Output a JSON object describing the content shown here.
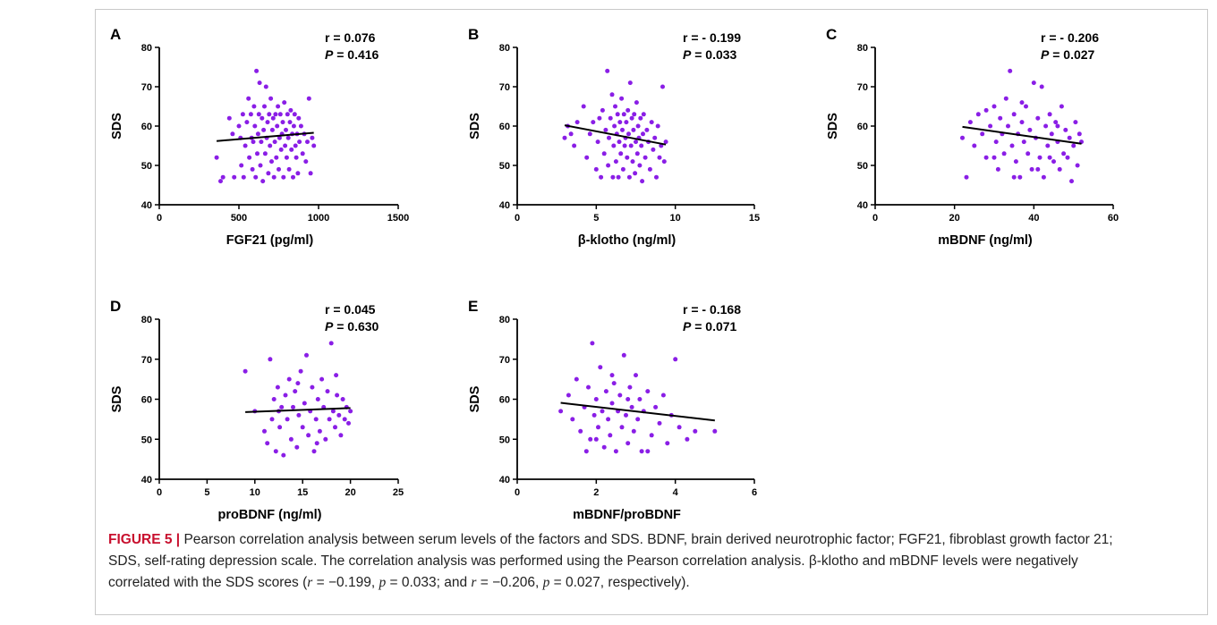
{
  "chart_data": [
    {
      "type": "scatter",
      "panel": "A",
      "xlabel": "FGF21 (pg/ml)",
      "ylabel": "SDS",
      "xlim": [
        0,
        1500
      ],
      "ylim": [
        40,
        80
      ],
      "xticks": [
        0,
        500,
        1000,
        1500
      ],
      "yticks": [
        40,
        50,
        60,
        70,
        80
      ],
      "stat_r": "r = 0.076",
      "stat_p_label": "P",
      "stat_p_value": "= 0.416",
      "fit": {
        "x": [
          360,
          970
        ],
        "y": [
          56.2,
          58.3
        ]
      },
      "points": [
        [
          360,
          52
        ],
        [
          385,
          46
        ],
        [
          400,
          47
        ],
        [
          440,
          62
        ],
        [
          460,
          58
        ],
        [
          470,
          47
        ],
        [
          500,
          60
        ],
        [
          510,
          57
        ],
        [
          515,
          50
        ],
        [
          525,
          63
        ],
        [
          530,
          47
        ],
        [
          540,
          55
        ],
        [
          550,
          61
        ],
        [
          560,
          67
        ],
        [
          565,
          52
        ],
        [
          575,
          63
        ],
        [
          580,
          57
        ],
        [
          585,
          49
        ],
        [
          590,
          56
        ],
        [
          595,
          65
        ],
        [
          600,
          60
        ],
        [
          605,
          47
        ],
        [
          610,
          74
        ],
        [
          615,
          53
        ],
        [
          620,
          58
        ],
        [
          625,
          63
        ],
        [
          630,
          71
        ],
        [
          635,
          50
        ],
        [
          640,
          56
        ],
        [
          645,
          62
        ],
        [
          650,
          46
        ],
        [
          655,
          59
        ],
        [
          660,
          65
        ],
        [
          665,
          53
        ],
        [
          670,
          70
        ],
        [
          675,
          57
        ],
        [
          680,
          61
        ],
        [
          685,
          48
        ],
        [
          690,
          63
        ],
        [
          695,
          55
        ],
        [
          700,
          67
        ],
        [
          705,
          51
        ],
        [
          710,
          59
        ],
        [
          715,
          62
        ],
        [
          720,
          47
        ],
        [
          725,
          56
        ],
        [
          730,
          63
        ],
        [
          735,
          52
        ],
        [
          740,
          60
        ],
        [
          745,
          65
        ],
        [
          750,
          49
        ],
        [
          755,
          57
        ],
        [
          760,
          63
        ],
        [
          765,
          54
        ],
        [
          770,
          58
        ],
        [
          775,
          61
        ],
        [
          780,
          47
        ],
        [
          785,
          66
        ],
        [
          790,
          55
        ],
        [
          795,
          59
        ],
        [
          800,
          52
        ],
        [
          805,
          63
        ],
        [
          810,
          57
        ],
        [
          815,
          49
        ],
        [
          820,
          61
        ],
        [
          825,
          64
        ],
        [
          830,
          54
        ],
        [
          835,
          58
        ],
        [
          840,
          47
        ],
        [
          845,
          60
        ],
        [
          850,
          63
        ],
        [
          855,
          55
        ],
        [
          860,
          52
        ],
        [
          865,
          58
        ],
        [
          870,
          48
        ],
        [
          875,
          62
        ],
        [
          880,
          56
        ],
        [
          890,
          60
        ],
        [
          900,
          53
        ],
        [
          910,
          58
        ],
        [
          920,
          51
        ],
        [
          930,
          56
        ],
        [
          940,
          67
        ],
        [
          950,
          48
        ],
        [
          960,
          57
        ],
        [
          970,
          55
        ]
      ]
    },
    {
      "type": "scatter",
      "panel": "B",
      "xlabel": "β-klotho (ng/ml)",
      "ylabel": "SDS",
      "xlim": [
        0,
        15
      ],
      "ylim": [
        40,
        80
      ],
      "xticks": [
        0,
        5,
        10,
        15
      ],
      "yticks": [
        40,
        50,
        60,
        70,
        80
      ],
      "stat_r": "r = - 0.199",
      "stat_p_label": "P",
      "stat_p_value": "= 0.033",
      "fit": {
        "x": [
          3,
          9.4
        ],
        "y": [
          60.2,
          55.3
        ]
      },
      "points": [
        [
          3,
          57
        ],
        [
          3.2,
          60
        ],
        [
          3.4,
          58
        ],
        [
          3.6,
          55
        ],
        [
          3.8,
          61
        ],
        [
          4.2,
          65
        ],
        [
          4.4,
          52
        ],
        [
          4.6,
          58
        ],
        [
          4.8,
          61
        ],
        [
          5,
          49
        ],
        [
          5.1,
          56
        ],
        [
          5.2,
          62
        ],
        [
          5.3,
          47
        ],
        [
          5.4,
          64
        ],
        [
          5.5,
          53
        ],
        [
          5.6,
          59
        ],
        [
          5.7,
          74
        ],
        [
          5.75,
          50
        ],
        [
          5.8,
          57
        ],
        [
          5.9,
          62
        ],
        [
          6,
          68
        ],
        [
          6.05,
          47
        ],
        [
          6.1,
          55
        ],
        [
          6.15,
          60
        ],
        [
          6.2,
          65
        ],
        [
          6.25,
          51
        ],
        [
          6.3,
          58
        ],
        [
          6.35,
          63
        ],
        [
          6.4,
          47
        ],
        [
          6.45,
          56
        ],
        [
          6.5,
          61
        ],
        [
          6.55,
          53
        ],
        [
          6.6,
          67
        ],
        [
          6.65,
          59
        ],
        [
          6.7,
          49
        ],
        [
          6.75,
          63
        ],
        [
          6.8,
          55
        ],
        [
          6.85,
          57
        ],
        [
          6.9,
          61
        ],
        [
          6.95,
          52
        ],
        [
          7,
          64
        ],
        [
          7.05,
          58
        ],
        [
          7.1,
          47
        ],
        [
          7.15,
          71
        ],
        [
          7.2,
          55
        ],
        [
          7.25,
          62
        ],
        [
          7.3,
          51
        ],
        [
          7.35,
          59
        ],
        [
          7.4,
          63
        ],
        [
          7.45,
          48
        ],
        [
          7.5,
          56
        ],
        [
          7.55,
          66
        ],
        [
          7.6,
          53
        ],
        [
          7.65,
          60
        ],
        [
          7.7,
          57
        ],
        [
          7.75,
          50
        ],
        [
          7.8,
          62
        ],
        [
          7.85,
          55
        ],
        [
          7.9,
          46
        ],
        [
          7.95,
          58
        ],
        [
          8,
          63
        ],
        [
          8.1,
          52
        ],
        [
          8.2,
          59
        ],
        [
          8.3,
          56
        ],
        [
          8.4,
          49
        ],
        [
          8.5,
          61
        ],
        [
          8.6,
          54
        ],
        [
          8.7,
          57
        ],
        [
          8.8,
          47
        ],
        [
          8.9,
          60
        ],
        [
          9,
          52
        ],
        [
          9.1,
          55
        ],
        [
          9.2,
          70
        ],
        [
          9.3,
          51
        ],
        [
          9.4,
          56
        ]
      ]
    },
    {
      "type": "scatter",
      "panel": "C",
      "xlabel": "mBDNF (ng/ml)",
      "ylabel": "SDS",
      "xlim": [
        0,
        60
      ],
      "ylim": [
        40,
        80
      ],
      "xticks": [
        0,
        20,
        40,
        60
      ],
      "yticks": [
        40,
        50,
        60,
        70,
        80
      ],
      "stat_r": "r = - 0.206",
      "stat_p_label": "P",
      "stat_p_value": "= 0.027",
      "fit": {
        "x": [
          22,
          52
        ],
        "y": [
          59.8,
          55.5
        ]
      },
      "points": [
        [
          22,
          57
        ],
        [
          23,
          47
        ],
        [
          24,
          61
        ],
        [
          25,
          55
        ],
        [
          26,
          63
        ],
        [
          27,
          58
        ],
        [
          28,
          52
        ],
        [
          29,
          60
        ],
        [
          30,
          65
        ],
        [
          30.5,
          56
        ],
        [
          31,
          49
        ],
        [
          31.5,
          62
        ],
        [
          32,
          58
        ],
        [
          32.5,
          53
        ],
        [
          33,
          67
        ],
        [
          33.5,
          60
        ],
        [
          34,
          74
        ],
        [
          34.5,
          55
        ],
        [
          35,
          63
        ],
        [
          35.5,
          51
        ],
        [
          36,
          58
        ],
        [
          36.5,
          47
        ],
        [
          37,
          61
        ],
        [
          37.5,
          56
        ],
        [
          38,
          65
        ],
        [
          38.5,
          53
        ],
        [
          39,
          59
        ],
        [
          39.5,
          49
        ],
        [
          40,
          71
        ],
        [
          40.5,
          57
        ],
        [
          41,
          62
        ],
        [
          41.5,
          52
        ],
        [
          42,
          70
        ],
        [
          42.5,
          47
        ],
        [
          43,
          60
        ],
        [
          43.5,
          55
        ],
        [
          44,
          63
        ],
        [
          44.5,
          58
        ],
        [
          45,
          51
        ],
        [
          45.5,
          61
        ],
        [
          46,
          56
        ],
        [
          46.5,
          49
        ],
        [
          47,
          65
        ],
        [
          47.5,
          53
        ],
        [
          48,
          59
        ],
        [
          48.5,
          52
        ],
        [
          49,
          57
        ],
        [
          49.5,
          46
        ],
        [
          50,
          55
        ],
        [
          50.5,
          61
        ],
        [
          51,
          50
        ],
        [
          51.5,
          58
        ],
        [
          52,
          56
        ],
        [
          30,
          52
        ],
        [
          35,
          47
        ],
        [
          28,
          64
        ],
        [
          37,
          66
        ],
        [
          41,
          49
        ],
        [
          44,
          52
        ],
        [
          46,
          60
        ]
      ]
    },
    {
      "type": "scatter",
      "panel": "D",
      "xlabel": "proBDNF (ng/ml)",
      "ylabel": "SDS",
      "xlim": [
        0,
        25
      ],
      "ylim": [
        40,
        80
      ],
      "xticks": [
        0,
        5,
        10,
        15,
        20,
        25
      ],
      "yticks": [
        40,
        50,
        60,
        70,
        80
      ],
      "stat_r": "r = 0.045",
      "stat_p_label": "P",
      "stat_p_value": "= 0.630",
      "fit": {
        "x": [
          9,
          20
        ],
        "y": [
          56.8,
          57.8
        ]
      },
      "points": [
        [
          9,
          67
        ],
        [
          10,
          57
        ],
        [
          11,
          52
        ],
        [
          11.3,
          49
        ],
        [
          11.6,
          70
        ],
        [
          11.8,
          55
        ],
        [
          12,
          60
        ],
        [
          12.2,
          47
        ],
        [
          12.4,
          63
        ],
        [
          12.6,
          53
        ],
        [
          12.8,
          58
        ],
        [
          13,
          46
        ],
        [
          13.2,
          61
        ],
        [
          13.4,
          55
        ],
        [
          13.6,
          65
        ],
        [
          13.8,
          50
        ],
        [
          14,
          58
        ],
        [
          14.2,
          62
        ],
        [
          14.4,
          48
        ],
        [
          14.6,
          56
        ],
        [
          14.8,
          67
        ],
        [
          15,
          53
        ],
        [
          15.2,
          59
        ],
        [
          15.4,
          71
        ],
        [
          15.6,
          51
        ],
        [
          15.8,
          57
        ],
        [
          16,
          63
        ],
        [
          16.2,
          47
        ],
        [
          16.4,
          55
        ],
        [
          16.6,
          60
        ],
        [
          16.8,
          52
        ],
        [
          17,
          65
        ],
        [
          17.2,
          58
        ],
        [
          17.4,
          50
        ],
        [
          17.6,
          62
        ],
        [
          17.8,
          55
        ],
        [
          18,
          74
        ],
        [
          18.2,
          57
        ],
        [
          18.4,
          53
        ],
        [
          18.6,
          61
        ],
        [
          18.8,
          56
        ],
        [
          19,
          51
        ],
        [
          19.2,
          60
        ],
        [
          19.4,
          55
        ],
        [
          19.6,
          58
        ],
        [
          19.8,
          54
        ],
        [
          20,
          57
        ],
        [
          12.5,
          57
        ],
        [
          14.5,
          64
        ],
        [
          16.5,
          49
        ],
        [
          18.5,
          66
        ]
      ]
    },
    {
      "type": "scatter",
      "panel": "E",
      "xlabel": "mBDNF/proBDNF",
      "ylabel": "SDS",
      "xlim": [
        0,
        6
      ],
      "ylim": [
        40,
        80
      ],
      "xticks": [
        0,
        2,
        4,
        6
      ],
      "yticks": [
        40,
        50,
        60,
        70,
        80
      ],
      "stat_r": "r = - 0.168",
      "stat_p_label": "P",
      "stat_p_value": "= 0.071",
      "fit": {
        "x": [
          1.1,
          5
        ],
        "y": [
          59.1,
          54.7
        ]
      },
      "points": [
        [
          1.1,
          57
        ],
        [
          1.3,
          61
        ],
        [
          1.4,
          55
        ],
        [
          1.5,
          65
        ],
        [
          1.6,
          52
        ],
        [
          1.7,
          58
        ],
        [
          1.75,
          47
        ],
        [
          1.8,
          63
        ],
        [
          1.85,
          50
        ],
        [
          1.9,
          74
        ],
        [
          1.95,
          56
        ],
        [
          2,
          60
        ],
        [
          2.05,
          53
        ],
        [
          2.1,
          68
        ],
        [
          2.15,
          57
        ],
        [
          2.2,
          48
        ],
        [
          2.25,
          62
        ],
        [
          2.3,
          55
        ],
        [
          2.35,
          51
        ],
        [
          2.4,
          59
        ],
        [
          2.45,
          64
        ],
        [
          2.5,
          47
        ],
        [
          2.55,
          57
        ],
        [
          2.6,
          61
        ],
        [
          2.65,
          53
        ],
        [
          2.7,
          71
        ],
        [
          2.75,
          56
        ],
        [
          2.8,
          49
        ],
        [
          2.85,
          63
        ],
        [
          2.9,
          58
        ],
        [
          2.95,
          52
        ],
        [
          3,
          66
        ],
        [
          3.05,
          55
        ],
        [
          3.1,
          60
        ],
        [
          3.15,
          47
        ],
        [
          3.2,
          57
        ],
        [
          3.3,
          62
        ],
        [
          3.4,
          51
        ],
        [
          3.5,
          58
        ],
        [
          3.6,
          54
        ],
        [
          3.7,
          61
        ],
        [
          3.8,
          49
        ],
        [
          3.9,
          56
        ],
        [
          4,
          70
        ],
        [
          4.1,
          53
        ],
        [
          4.3,
          50
        ],
        [
          4.5,
          52
        ],
        [
          5,
          52
        ],
        [
          2,
          50
        ],
        [
          2.4,
          66
        ],
        [
          2.8,
          60
        ],
        [
          3.3,
          47
        ]
      ]
    }
  ],
  "caption": {
    "lead": "FIGURE 5 |",
    "text1": " Pearson correlation analysis between serum levels of the factors and SDS. BDNF, brain derived neurotrophic factor; FGF21, fibroblast growth factor 21;",
    "text2": "SDS, self-rating depression scale. The correlation analysis was performed using the Pearson correlation analysis. β-klotho and mBDNF levels were negatively",
    "text3": "correlated with the SDS scores (",
    "r1_sym": "r",
    "r1_val": " = −0.199, ",
    "p1_sym": "p",
    "p1_val": " = 0.033; and ",
    "r2_sym": "r",
    "r2_val": " = −0.206, ",
    "p2_sym": "p",
    "p2_val": " = 0.027, respectively).",
    "point_color": "#8a1ee6",
    "line_color": "#000000"
  }
}
